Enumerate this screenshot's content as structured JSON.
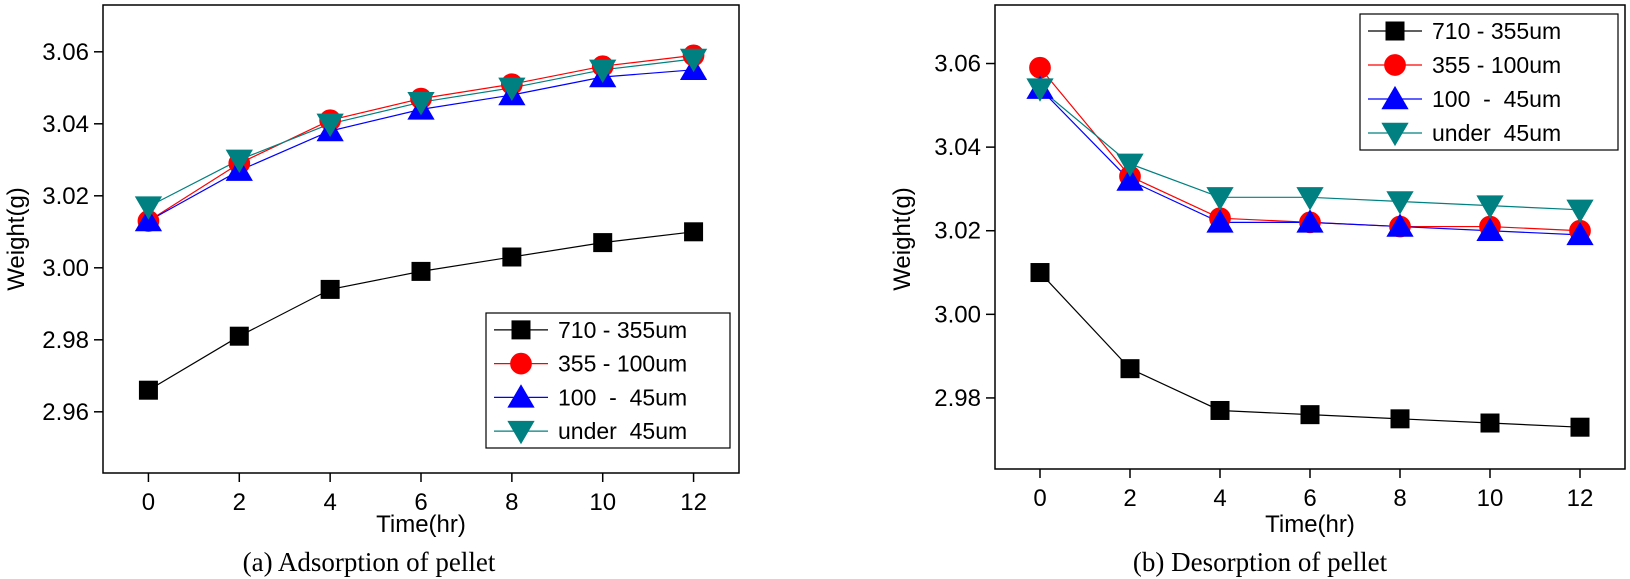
{
  "chart_data": [
    {
      "type": "line",
      "panel": "a",
      "caption": "(a) Adsorption of pellet",
      "xlabel": "Time(hr)",
      "ylabel": "Weight(g)",
      "x": [
        0,
        2,
        4,
        6,
        8,
        10,
        12
      ],
      "xlim": [
        -1,
        13
      ],
      "ylim": [
        2.943,
        3.073
      ],
      "xticks": [
        "0",
        "2",
        "4",
        "6",
        "8",
        "10",
        "12"
      ],
      "yticks": [
        {
          "value": 2.96,
          "label": "2.96"
        },
        {
          "value": 2.98,
          "label": "2.98"
        },
        {
          "value": 3.0,
          "label": "3.00"
        },
        {
          "value": 3.02,
          "label": "3.02"
        },
        {
          "value": 3.04,
          "label": "3.04"
        },
        {
          "value": 3.06,
          "label": "3.06"
        }
      ],
      "legend_position": "bottom-right",
      "series": [
        {
          "name": "710 - 355um",
          "marker": "square",
          "color": "#000000",
          "fill": "#000000",
          "values": [
            2.966,
            2.981,
            2.994,
            2.999,
            3.003,
            3.007,
            3.01
          ]
        },
        {
          "name": "355 - 100um",
          "marker": "circle",
          "color": "#ff0000",
          "fill": "#ff0000",
          "values": [
            3.013,
            3.029,
            3.041,
            3.047,
            3.051,
            3.056,
            3.059
          ]
        },
        {
          "name": "100  -  45um",
          "marker": "triangle-up",
          "color": "#0000ff",
          "fill": "#0000ff",
          "values": [
            3.013,
            3.027,
            3.038,
            3.044,
            3.048,
            3.053,
            3.055
          ]
        },
        {
          "name": "under  45um",
          "marker": "triangle-down",
          "color": "#008080",
          "fill": "#008080",
          "values": [
            3.017,
            3.03,
            3.04,
            3.046,
            3.05,
            3.055,
            3.058
          ]
        }
      ]
    },
    {
      "type": "line",
      "panel": "b",
      "caption": "(b) Desorption of pellet",
      "xlabel": "Time(hr)",
      "ylabel": "Weight(g)",
      "x": [
        0,
        2,
        4,
        6,
        8,
        10,
        12
      ],
      "xlim": [
        -1,
        13
      ],
      "ylim": [
        2.963,
        3.074
      ],
      "xticks": [
        "0",
        "2",
        "4",
        "6",
        "8",
        "10",
        "12"
      ],
      "yticks": [
        {
          "value": 2.98,
          "label": "2.98"
        },
        {
          "value": 3.0,
          "label": "3.00"
        },
        {
          "value": 3.02,
          "label": "3.02"
        },
        {
          "value": 3.04,
          "label": "3.04"
        },
        {
          "value": 3.06,
          "label": "3.06"
        }
      ],
      "legend_position": "top-right",
      "series": [
        {
          "name": "710 - 355um",
          "marker": "square",
          "color": "#000000",
          "fill": "#000000",
          "values": [
            3.01,
            2.987,
            2.977,
            2.976,
            2.975,
            2.974,
            2.973
          ]
        },
        {
          "name": "355 - 100um",
          "marker": "circle",
          "color": "#ff0000",
          "fill": "#ff0000",
          "values": [
            3.059,
            3.033,
            3.023,
            3.022,
            3.021,
            3.021,
            3.02
          ]
        },
        {
          "name": "100  -  45um",
          "marker": "triangle-up",
          "color": "#0000ff",
          "fill": "#0000ff",
          "values": [
            3.054,
            3.032,
            3.022,
            3.022,
            3.021,
            3.02,
            3.019
          ]
        },
        {
          "name": "under  45um",
          "marker": "triangle-down",
          "color": "#008080",
          "fill": "#008080",
          "values": [
            3.054,
            3.036,
            3.028,
            3.028,
            3.027,
            3.026,
            3.025
          ]
        }
      ]
    }
  ]
}
